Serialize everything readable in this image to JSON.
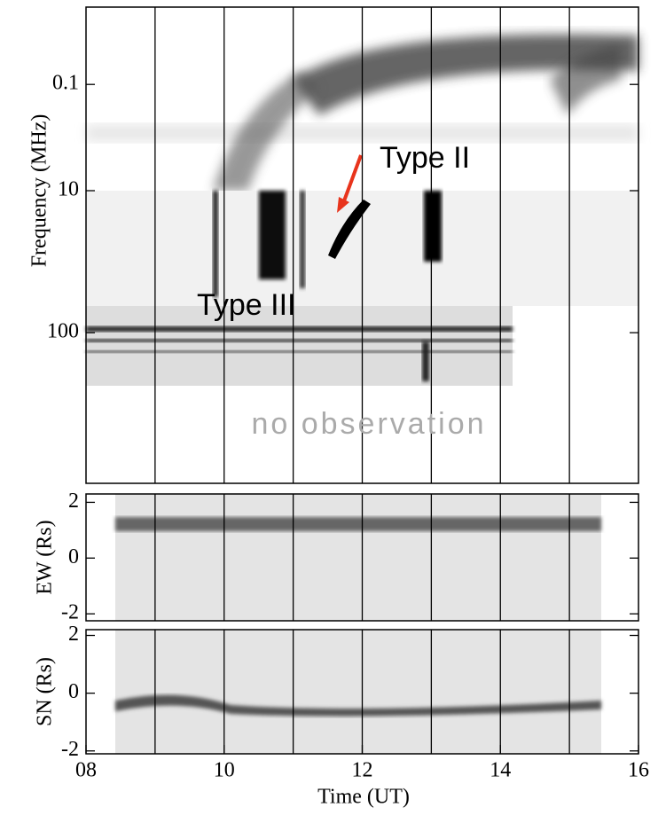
{
  "chart_data": [
    {
      "type": "spectrogram",
      "ylabel": "Frequency (MHz)",
      "log": true,
      "inverted": true,
      "ylim": [
        0.0035,
        10
      ],
      "yticks": [
        0.1
      ],
      "annotations": [
        "Type II"
      ]
    },
    {
      "type": "spectrogram",
      "log": true,
      "inverted": true,
      "ylim": [
        10,
        1150
      ],
      "yticks": [
        10,
        100
      ],
      "annotations": [
        "Type III",
        "no observation"
      ]
    },
    {
      "type": "spectrogram",
      "ylabel": "EW (Rs)",
      "ylim": [
        -2.25,
        2.3
      ],
      "yticks": [
        -2,
        0,
        2
      ]
    },
    {
      "type": "spectrogram",
      "ylabel": "SN (Rs)",
      "xlabel": "Time (UT)",
      "ylim": [
        -2.1,
        2.2
      ],
      "yticks": [
        -2,
        0,
        2
      ],
      "xlim": [
        8,
        16
      ],
      "xticks": [
        {
          "value": 8,
          "label": "08"
        },
        {
          "value": 10,
          "label": "10"
        },
        {
          "value": 12,
          "label": "12"
        },
        {
          "value": 14,
          "label": "14"
        },
        {
          "value": 16,
          "label": "16"
        }
      ],
      "minor_xticks": [
        9,
        11,
        13,
        15
      ]
    }
  ]
}
